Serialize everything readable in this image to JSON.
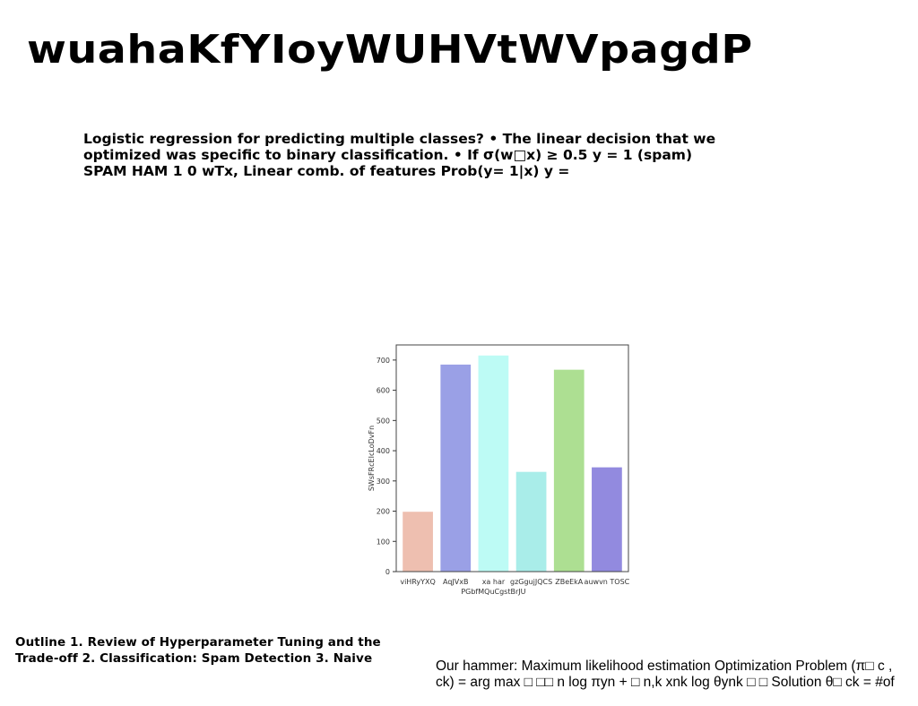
{
  "slide": {
    "title": "wuahaKfYIoyWUHVtWVpagdP",
    "intro": "Logistic regression for predicting multiple classes? • The linear decision that we optimized was specific to binary classification. • If σ(w□x) ≥ 0.5 y = 1 (spam) SPAM HAM 1 0 wTx, Linear comb. of features Prob(y= 1|x) y =",
    "outline": "Outline 1. Review of Hyperparameter Tuning and the Trade-off 2. Classification: Spam Detection 3. Naive",
    "hammer": "Our hammer: Maximum likelihood estimation Optimization Problem (π□ c , ck) = arg max □ □□ n log πyn + □ n,k xnk log θynk □ □ Solution θ□ ck = #of"
  },
  "chart_data": {
    "type": "bar",
    "title": "",
    "xlabel": "",
    "ylabel": "SWsFRcEIcLoDvFn",
    "ylim": [
      0,
      750
    ],
    "yticks": [
      0,
      100,
      200,
      300,
      400,
      500,
      600,
      700
    ],
    "grid": false,
    "categories": [
      [
        "viHRyYXQ"
      ],
      [
        "AqJVxB"
      ],
      [
        "xa har",
        "PGbfMQuCgstBrJU"
      ],
      [
        "gzGgujJQCS"
      ],
      [
        "ZBeEkA"
      ],
      [
        "auwvn TOSC"
      ]
    ],
    "values": [
      198,
      685,
      715,
      330,
      668,
      345
    ],
    "colors": [
      "#eebfb0",
      "#9aa0e6",
      "#bdfbf5",
      "#a9ede9",
      "#addf92",
      "#928adf"
    ]
  }
}
